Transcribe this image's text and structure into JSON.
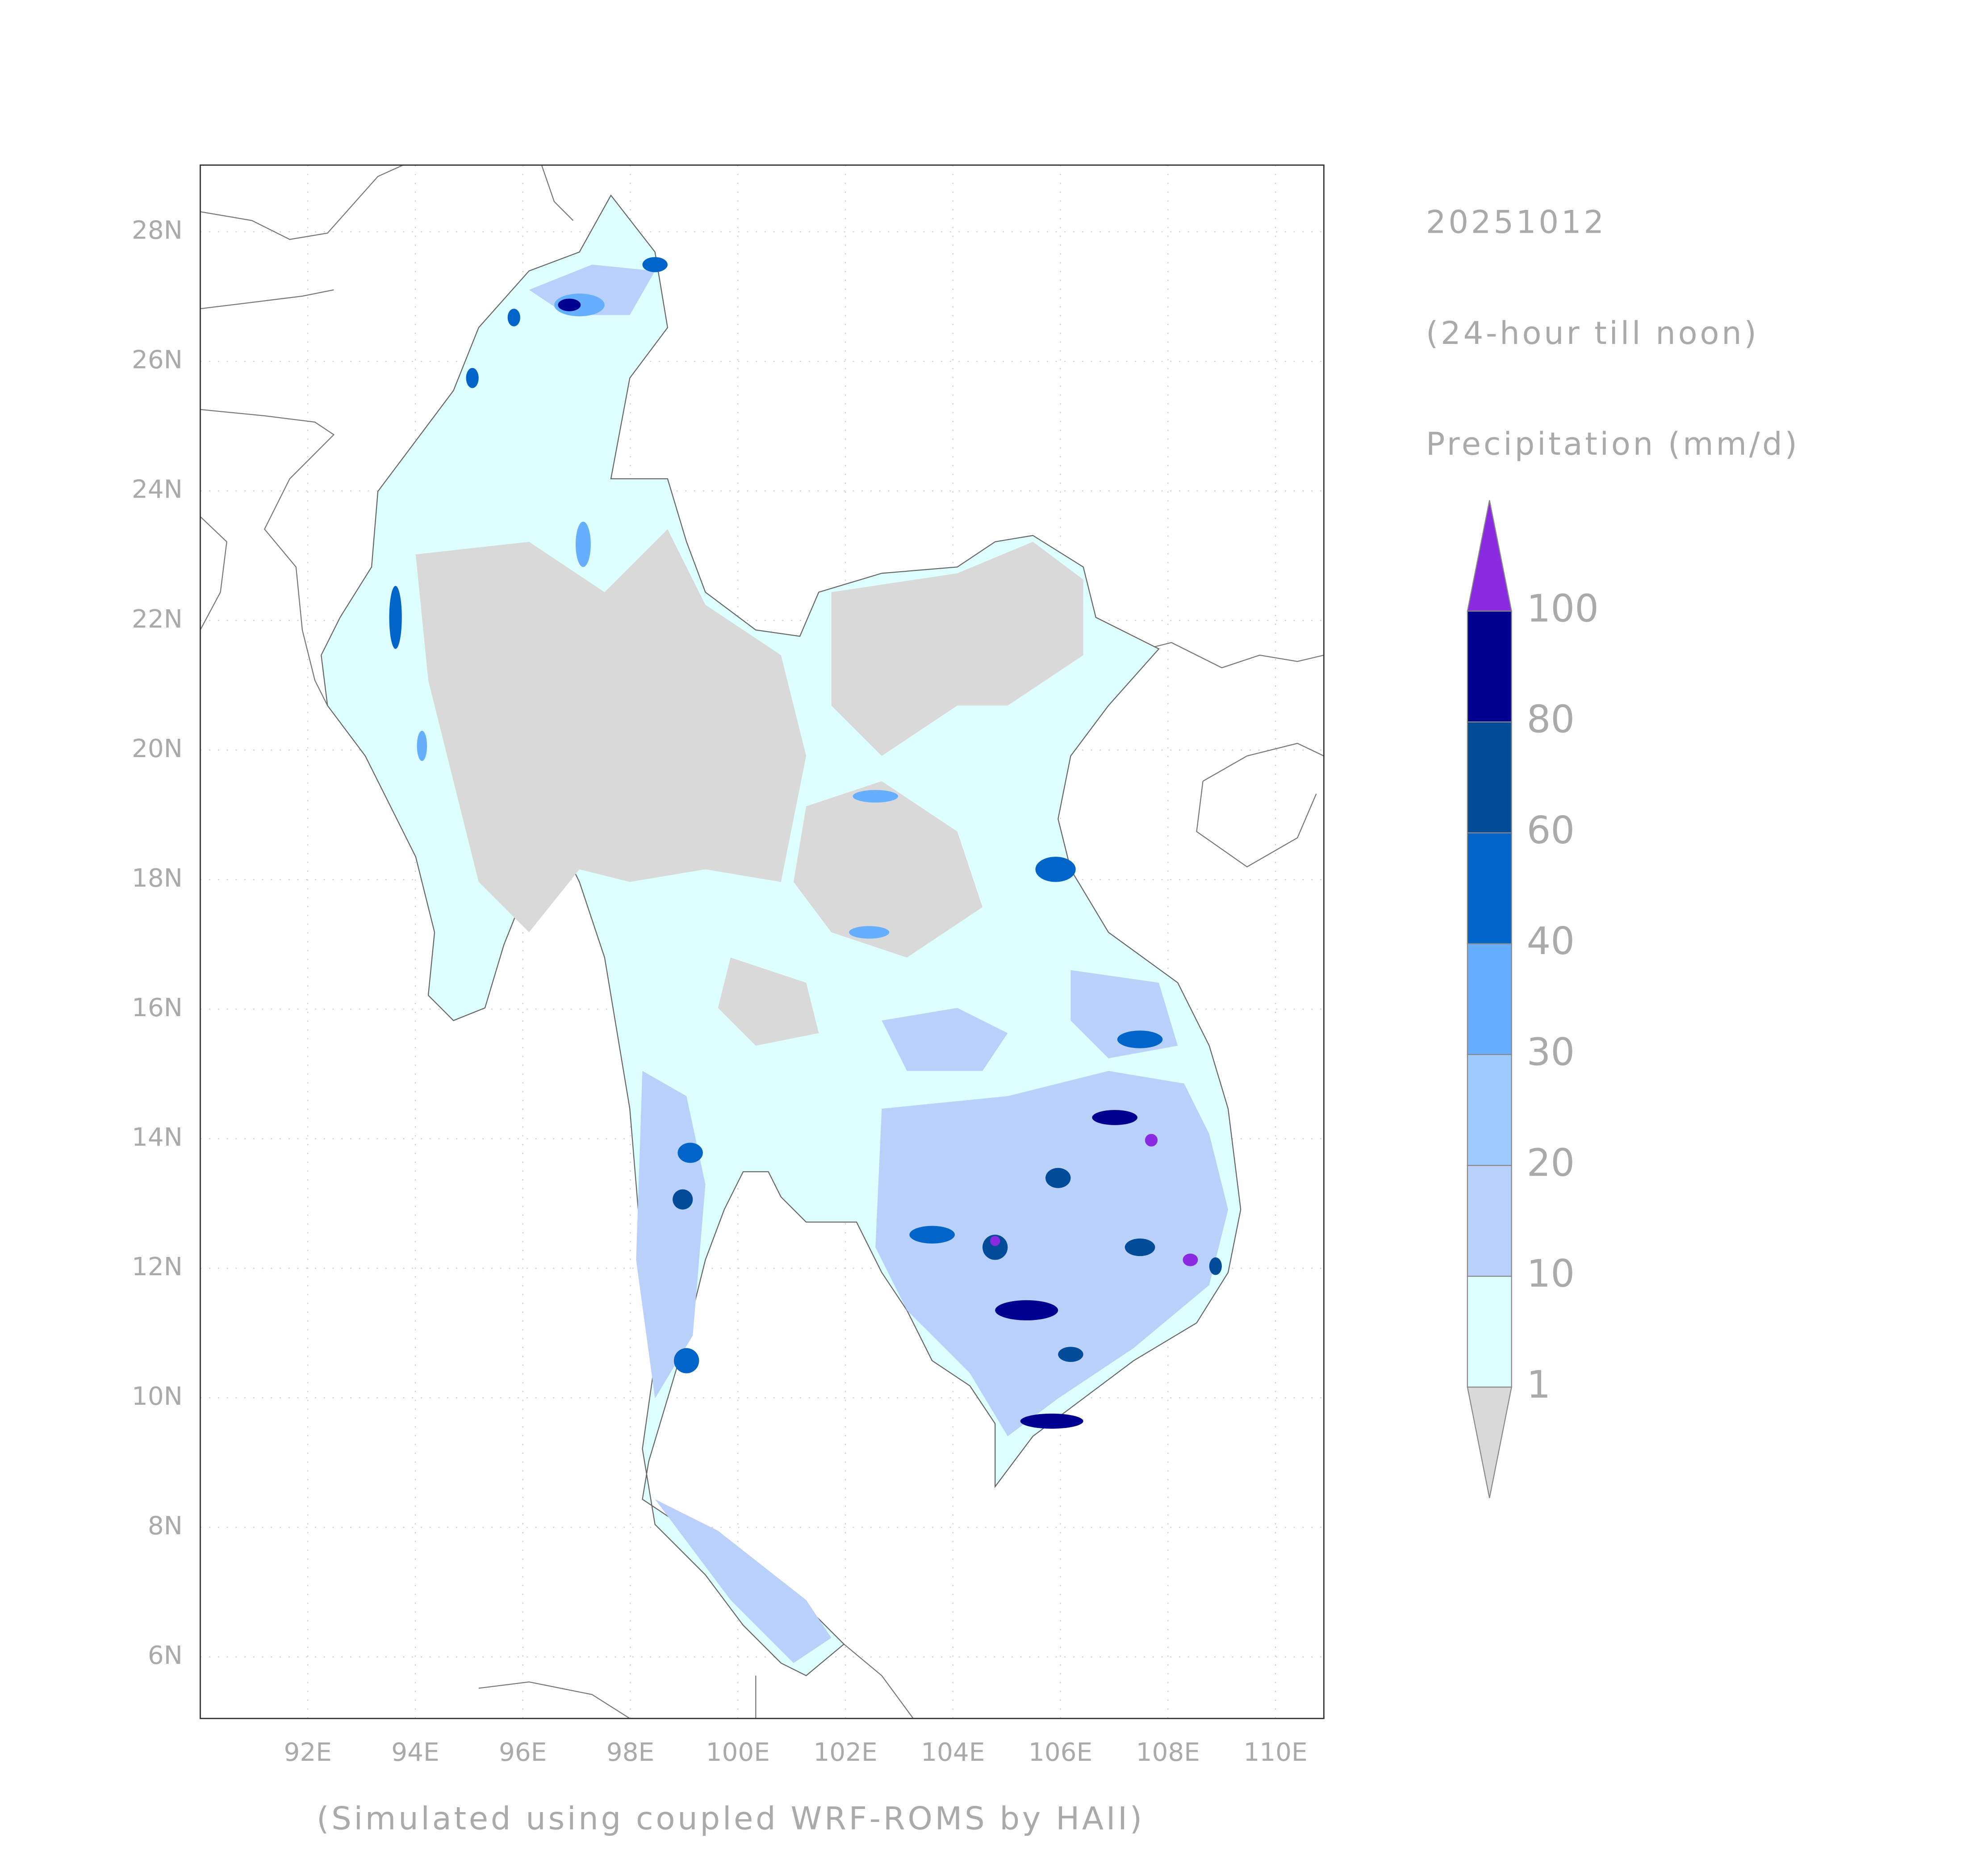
{
  "date": "20251012",
  "period": "(24-hour till noon)",
  "variable": "Precipitation (mm/d)",
  "credit": "(Simulated using coupled WRF-ROMS by HAII)",
  "map": {
    "lonlim": [
      90,
      110.9
    ],
    "latlim": [
      5.05,
      29.03
    ],
    "grid": true,
    "lon_ticks": [
      {
        "value": 92,
        "label": "92E"
      },
      {
        "value": 94,
        "label": "94E"
      },
      {
        "value": 96,
        "label": "96E"
      },
      {
        "value": 98,
        "label": "98E"
      },
      {
        "value": 100,
        "label": "100E"
      },
      {
        "value": 102,
        "label": "102E"
      },
      {
        "value": 104,
        "label": "104E"
      },
      {
        "value": 106,
        "label": "106E"
      },
      {
        "value": 108,
        "label": "108E"
      },
      {
        "value": 110,
        "label": "110E"
      }
    ],
    "lat_ticks": [
      {
        "value": 6,
        "label": "6N"
      },
      {
        "value": 8,
        "label": "8N"
      },
      {
        "value": 10,
        "label": "10N"
      },
      {
        "value": 12,
        "label": "12N"
      },
      {
        "value": 14,
        "label": "14N"
      },
      {
        "value": 16,
        "label": "16N"
      },
      {
        "value": 18,
        "label": "18N"
      },
      {
        "value": 20,
        "label": "20N"
      },
      {
        "value": 22,
        "label": "22N"
      },
      {
        "value": 24,
        "label": "24N"
      },
      {
        "value": 26,
        "label": "26N"
      },
      {
        "value": 28,
        "label": "28N"
      }
    ]
  },
  "colorbar": {
    "levels": [
      1,
      10,
      20,
      30,
      40,
      60,
      80,
      100
    ],
    "colors": [
      "#d9d9d9",
      "#ddffff",
      "#b9d0fa",
      "#9ecbff",
      "#66afff",
      "#0064c8",
      "#004c99",
      "#000090",
      "#8a2be2"
    ]
  }
}
